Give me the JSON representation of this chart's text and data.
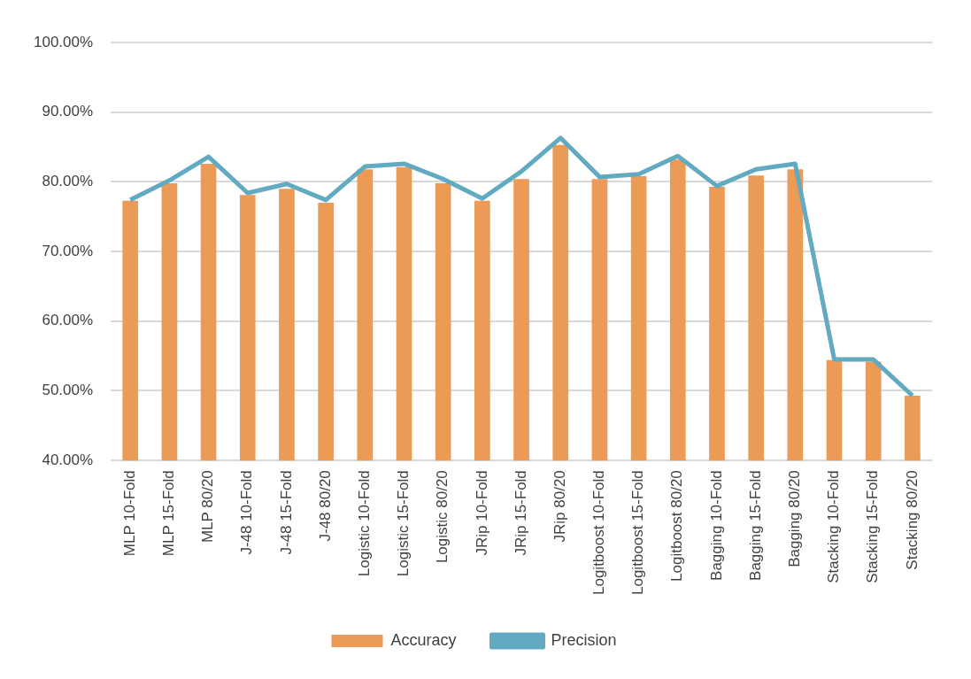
{
  "chart_data": {
    "type": "bar",
    "categories": [
      "MLP 10-Fold",
      "MLP 15-Fold",
      "MLP 80/20",
      "J-48 10-Fold",
      "J-48 15-Fold",
      "J-48 80/20",
      "Logistic 10-Fold",
      "Logistic 15-Fold",
      "Logistic 80/20",
      "JRip 10-Fold",
      "JRip 15-Fold",
      "JRip 80/20",
      "Logitboost 10-Fold",
      "Logitboost 15-Fold",
      "Logitboost 80/20",
      "Bagging 10-Fold",
      "Bagging 15-Fold",
      "Bagging 80/20",
      "Stacking 10-Fold",
      "Stacking 15-Fold",
      "Stacking 80/20"
    ],
    "series": [
      {
        "name": "Accuracy",
        "color": "#eb9b56",
        "values": [
          77.3,
          79.8,
          82.6,
          78.1,
          79.0,
          77.0,
          81.8,
          82.1,
          79.8,
          77.3,
          80.4,
          85.3,
          80.4,
          80.8,
          83.2,
          79.3,
          80.9,
          81.8,
          54.4,
          54.2,
          49.3
        ]
      },
      {
        "name": "Precision",
        "type": "line",
        "color": "#62a9c2",
        "values": [
          77.4,
          80.2,
          83.6,
          78.4,
          79.7,
          77.4,
          82.2,
          82.6,
          80.4,
          77.6,
          81.5,
          86.3,
          80.7,
          81.1,
          83.7,
          79.4,
          81.8,
          82.6,
          54.5,
          54.5,
          49.3
        ]
      }
    ],
    "ylim": [
      40,
      100
    ],
    "yticks": [
      {
        "value": 40,
        "label": "40.00%"
      },
      {
        "value": 50,
        "label": "50.00%"
      },
      {
        "value": 60,
        "label": "60.00%"
      },
      {
        "value": 70,
        "label": "70.00%"
      },
      {
        "value": 80,
        "label": "80.00%"
      },
      {
        "value": 90,
        "label": "90.00%"
      },
      {
        "value": 100,
        "label": "100.00%"
      }
    ],
    "grid": "y",
    "legend": "bottom",
    "marker": "none",
    "line_style": "solid"
  }
}
